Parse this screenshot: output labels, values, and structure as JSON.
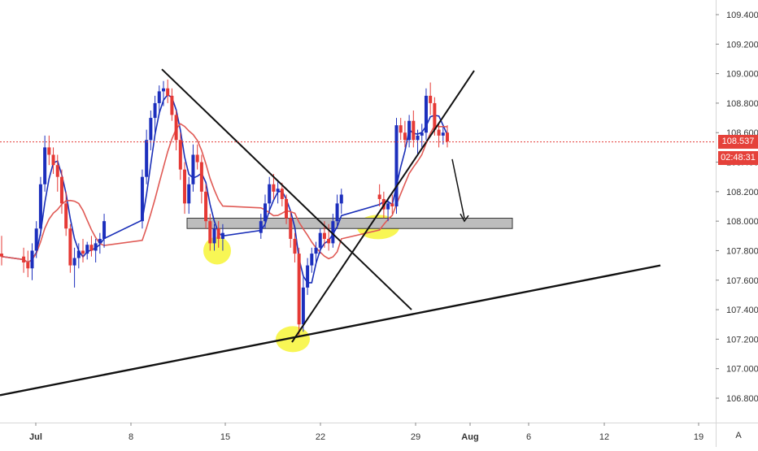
{
  "chart_data": {
    "type": "candlestick",
    "price_axis": {
      "ticks": [
        "109.400",
        "109.200",
        "109.000",
        "108.800",
        "108.600",
        "108.400",
        "108.200",
        "108.000",
        "107.800",
        "107.600",
        "107.400",
        "107.200",
        "107.000",
        "106.800"
      ],
      "ylim": [
        106.7,
        109.52
      ]
    },
    "time_axis": {
      "ticks": [
        "Jul",
        "8",
        "15",
        "22",
        "29",
        "Aug",
        "6",
        "12",
        "19"
      ],
      "bold": [
        "Jul",
        "Aug"
      ]
    },
    "current_price": "108.537",
    "countdown": "02:48:31",
    "axis_mode": "A",
    "colors": {
      "up": "#1c2fbd",
      "down": "#e53935",
      "fast_ma": "#1a2fb8",
      "slow_ma": "#e05a55",
      "trendline": "#111111",
      "highlight": "#f7f542",
      "support_zone": "#bdbdbd",
      "price_line": "#e53935"
    },
    "candles": [
      [
        107.78,
        107.9,
        107.7,
        107.76
      ],
      [
        107.76,
        107.82,
        107.65,
        107.72
      ],
      [
        107.72,
        107.8,
        107.62,
        107.68
      ],
      [
        107.68,
        107.85,
        107.6,
        107.8
      ],
      [
        107.8,
        108.0,
        107.75,
        107.95
      ],
      [
        107.95,
        108.3,
        107.9,
        108.25
      ],
      [
        108.25,
        108.58,
        108.2,
        108.5
      ],
      [
        108.5,
        108.58,
        108.38,
        108.45
      ],
      [
        108.45,
        108.5,
        108.32,
        108.38
      ],
      [
        108.38,
        108.45,
        108.2,
        108.3
      ],
      [
        108.3,
        108.35,
        108.05,
        108.12
      ],
      [
        108.12,
        108.2,
        107.9,
        107.95
      ],
      [
        107.95,
        107.98,
        107.65,
        107.7
      ],
      [
        107.7,
        107.82,
        107.55,
        107.75
      ],
      [
        107.75,
        107.85,
        107.68,
        107.8
      ],
      [
        107.8,
        107.88,
        107.72,
        107.78
      ],
      [
        107.78,
        107.86,
        107.74,
        107.84
      ],
      [
        107.84,
        107.9,
        107.76,
        107.8
      ],
      [
        107.8,
        107.88,
        107.72,
        107.85
      ],
      [
        107.85,
        107.92,
        107.78,
        107.88
      ],
      [
        107.88,
        108.05,
        107.82,
        108.0
      ],
      [
        108.0,
        108.35,
        107.95,
        108.3
      ],
      [
        108.3,
        108.62,
        108.25,
        108.55
      ],
      [
        108.55,
        108.75,
        108.48,
        108.7
      ],
      [
        108.7,
        108.85,
        108.6,
        108.8
      ],
      [
        108.8,
        108.92,
        108.72,
        108.88
      ],
      [
        108.88,
        108.95,
        108.78,
        108.9
      ],
      [
        108.9,
        108.96,
        108.8,
        108.85
      ],
      [
        108.85,
        108.9,
        108.68,
        108.72
      ],
      [
        108.72,
        108.75,
        108.48,
        108.55
      ],
      [
        108.55,
        108.6,
        108.28,
        108.35
      ],
      [
        108.35,
        108.4,
        108.05,
        108.12
      ],
      [
        108.12,
        108.3,
        108.05,
        108.25
      ],
      [
        108.25,
        108.52,
        108.2,
        108.45
      ],
      [
        108.45,
        108.52,
        108.35,
        108.4
      ],
      [
        108.4,
        108.45,
        108.12,
        108.2
      ],
      [
        108.2,
        108.25,
        107.95,
        108.0
      ],
      [
        108.0,
        108.05,
        107.8,
        107.85
      ],
      [
        107.85,
        107.98,
        107.8,
        107.95
      ],
      [
        107.95,
        108.0,
        107.82,
        107.88
      ],
      [
        107.88,
        107.98,
        107.8,
        107.92
      ],
      [
        107.92,
        108.05,
        107.88,
        108.0
      ],
      [
        108.0,
        108.18,
        107.95,
        108.12
      ],
      [
        108.12,
        108.3,
        108.05,
        108.25
      ],
      [
        108.25,
        108.32,
        108.15,
        108.2
      ],
      [
        108.2,
        108.28,
        108.12,
        108.22
      ],
      [
        108.22,
        108.26,
        108.1,
        108.15
      ],
      [
        108.15,
        108.18,
        107.98,
        108.02
      ],
      [
        108.02,
        108.06,
        107.82,
        107.88
      ],
      [
        107.88,
        107.92,
        107.72,
        107.78
      ],
      [
        107.78,
        107.82,
        107.22,
        107.3
      ],
      [
        107.3,
        107.62,
        107.25,
        107.55
      ],
      [
        107.55,
        107.75,
        107.5,
        107.7
      ],
      [
        107.7,
        107.82,
        107.65,
        107.78
      ],
      [
        107.78,
        107.86,
        107.7,
        107.82
      ],
      [
        107.82,
        107.95,
        107.78,
        107.92
      ],
      [
        107.92,
        108.0,
        107.82,
        107.88
      ],
      [
        107.88,
        107.98,
        107.8,
        107.85
      ],
      [
        107.85,
        108.05,
        107.82,
        108.0
      ],
      [
        108.0,
        108.18,
        107.95,
        108.12
      ],
      [
        108.12,
        108.22,
        108.05,
        108.18
      ],
      [
        108.18,
        108.25,
        108.1,
        108.15
      ],
      [
        108.15,
        108.2,
        108.02,
        108.08
      ],
      [
        108.08,
        108.15,
        108.0,
        108.12
      ],
      [
        108.12,
        108.18,
        108.05,
        108.1
      ],
      [
        108.1,
        108.7,
        108.05,
        108.65
      ],
      [
        108.65,
        108.7,
        108.55,
        108.6
      ],
      [
        108.6,
        108.68,
        108.5,
        108.55
      ],
      [
        108.55,
        108.72,
        108.5,
        108.68
      ],
      [
        108.68,
        108.75,
        108.5,
        108.55
      ],
      [
        108.55,
        108.62,
        108.45,
        108.58
      ],
      [
        108.58,
        108.66,
        108.5,
        108.6
      ],
      [
        108.6,
        108.9,
        108.55,
        108.85
      ],
      [
        108.85,
        108.94,
        108.72,
        108.8
      ],
      [
        108.8,
        108.84,
        108.58,
        108.62
      ],
      [
        108.62,
        108.66,
        108.5,
        108.58
      ],
      [
        108.58,
        108.64,
        108.52,
        108.6
      ],
      [
        108.6,
        108.65,
        108.5,
        108.54
      ]
    ],
    "annotations": [
      "descending trendline from 109.03 to 107.40",
      "ascending trendline from 107.18 to 109.02",
      "long-term rising support line from 106.82 to 107.70",
      "horizontal support zone 107.95-108.02",
      "projected drop arrow to 108.00",
      "highlighted touch points at 107.80, 107.20, 107.96"
    ]
  }
}
